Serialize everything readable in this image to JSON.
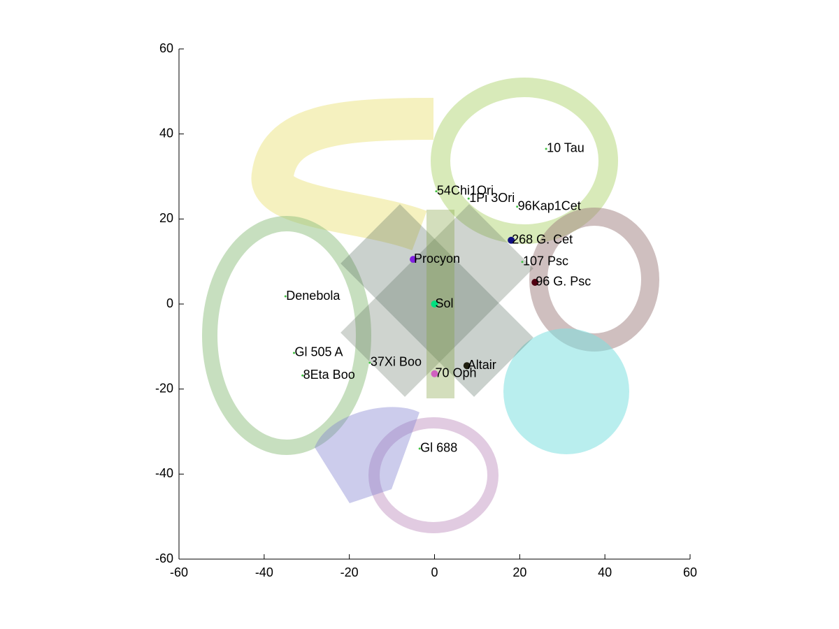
{
  "chart_data": {
    "type": "scatter",
    "xlim": [
      -60,
      60
    ],
    "ylim": [
      -60,
      60
    ],
    "xticks": [
      -60,
      -40,
      -20,
      0,
      20,
      40,
      60
    ],
    "yticks": [
      -60,
      -40,
      -20,
      0,
      20,
      40,
      60
    ],
    "series": [
      {
        "name": "Sol",
        "color": "#00e080",
        "marker_size": 5,
        "x": [
          0
        ],
        "values": [
          0
        ]
      },
      {
        "name": "Procyon",
        "color": "#8020e0",
        "marker_size": 5,
        "x": [
          -5
        ],
        "values": [
          10.5
        ]
      },
      {
        "name": "Denebola",
        "color": "#40c040",
        "marker_size": 1.5,
        "x": [
          -35
        ],
        "values": [
          1.8
        ]
      },
      {
        "name": "Gl 505 A",
        "color": "#40c040",
        "marker_size": 1.5,
        "x": [
          -33
        ],
        "values": [
          -11.5
        ]
      },
      {
        "name": "8Eta Boo",
        "color": "#40c040",
        "marker_size": 1.5,
        "x": [
          -31
        ],
        "values": [
          -16.8
        ]
      },
      {
        "name": "37Xi Boo",
        "color": "#40c040",
        "marker_size": 1.5,
        "x": [
          -15.2
        ],
        "values": [
          -13.8
        ]
      },
      {
        "name": "70 Oph",
        "color": "#d060c0",
        "marker_size": 5,
        "x": [
          0
        ],
        "values": [
          -16.4
        ]
      },
      {
        "name": "Altair",
        "color": "#202010",
        "marker_size": 5,
        "x": [
          7.6
        ],
        "values": [
          -14.5
        ]
      },
      {
        "name": "Gl 688",
        "color": "#40c040",
        "marker_size": 1.5,
        "x": [
          -3.5
        ],
        "values": [
          -34
        ]
      },
      {
        "name": "10 Tau",
        "color": "#40c040",
        "marker_size": 1.5,
        "x": [
          26.2
        ],
        "values": [
          36.5
        ]
      },
      {
        "name": "54Chi1Ori",
        "color": "#40c040",
        "marker_size": 1.5,
        "x": [
          0.4
        ],
        "values": [
          26.5
        ]
      },
      {
        "name": "1Pi 3Ori",
        "color": "#40c040",
        "marker_size": 1.5,
        "x": [
          8
        ],
        "values": [
          24.8
        ]
      },
      {
        "name": "96Kap1Cet",
        "color": "#40c040",
        "marker_size": 1.5,
        "x": [
          19.4
        ],
        "values": [
          22.9
        ]
      },
      {
        "name": "268 G. Cet",
        "color": "#101080",
        "marker_size": 5,
        "x": [
          18
        ],
        "values": [
          15
        ]
      },
      {
        "name": "107 Psc",
        "color": "#40c040",
        "marker_size": 1.5,
        "x": [
          20.6
        ],
        "values": [
          9.9
        ]
      },
      {
        "name": "96 G. Psc",
        "color": "#500010",
        "marker_size": 5,
        "x": [
          23.6
        ],
        "values": [
          5.1
        ]
      }
    ]
  }
}
